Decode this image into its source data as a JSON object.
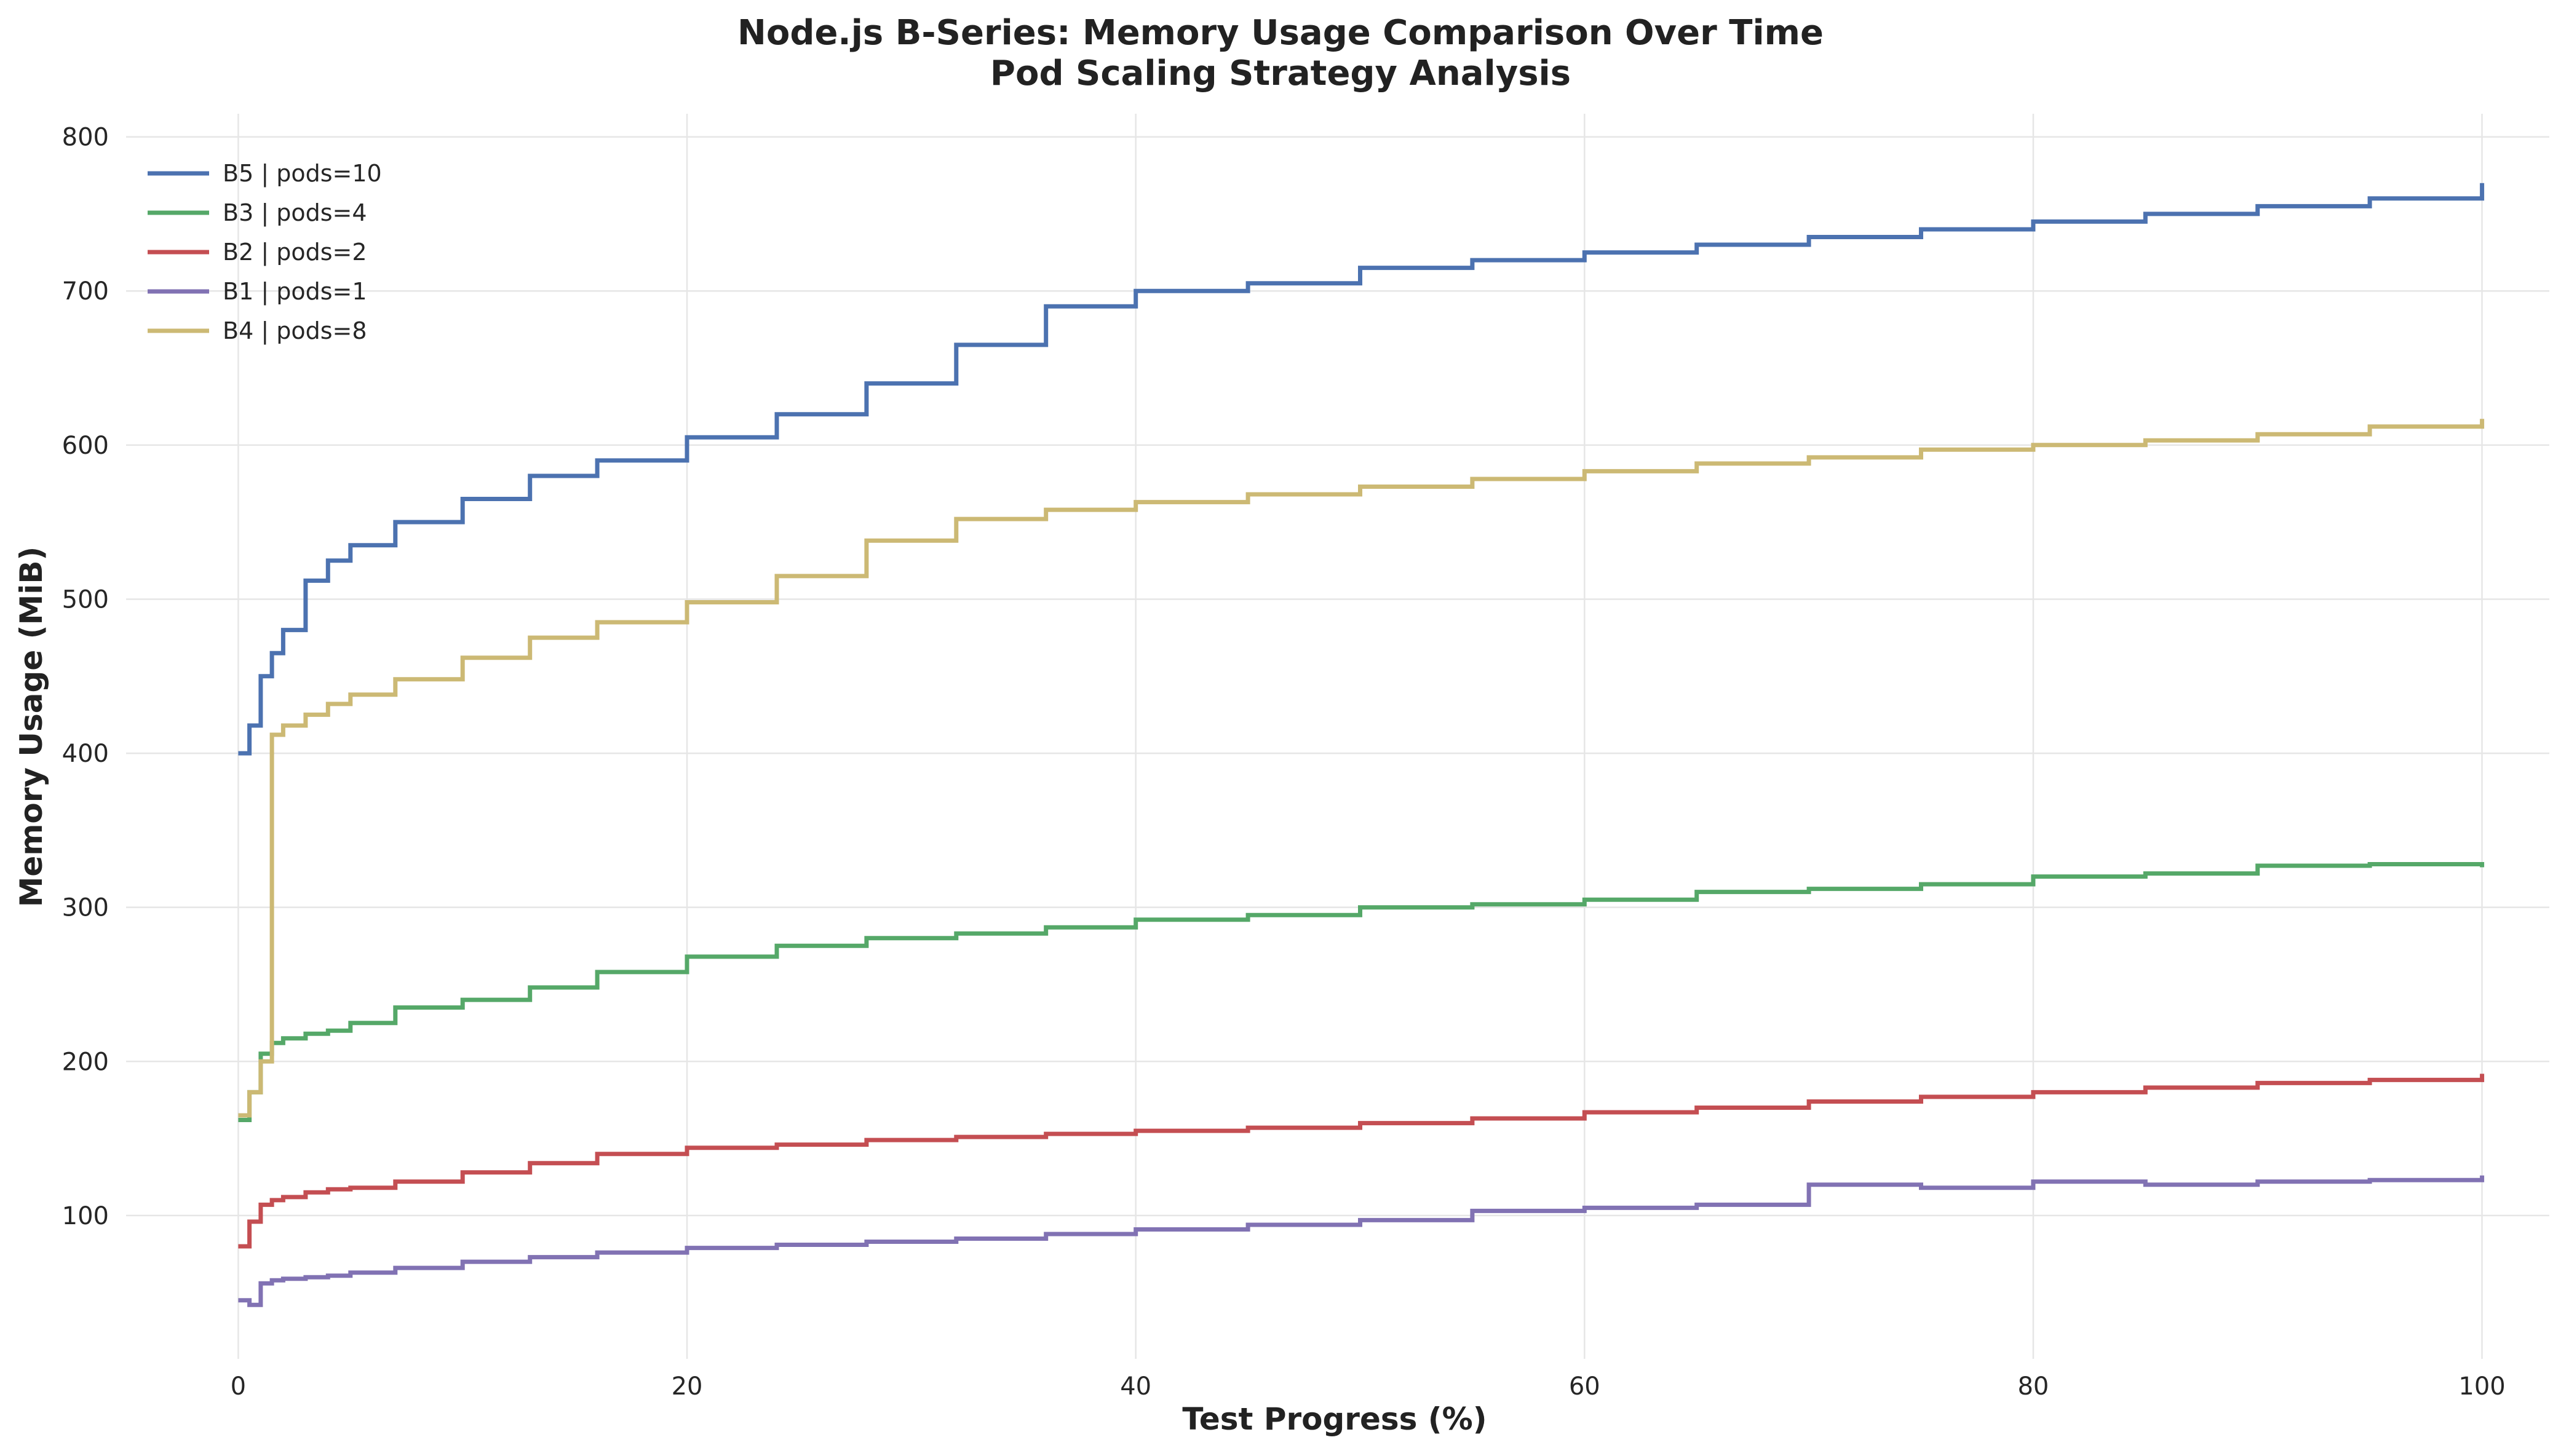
{
  "chart_data": {
    "type": "line",
    "step": true,
    "title": "Node.js B-Series: Memory Usage Comparison Over Time",
    "subtitle": "Pod Scaling Strategy Analysis",
    "xlabel": "Test Progress (%)",
    "ylabel": "Memory Usage (MiB)",
    "xlim": [
      -5,
      103
    ],
    "ylim": [
      7,
      815
    ],
    "xticks": [
      0,
      20,
      40,
      60,
      80,
      100
    ],
    "yticks": [
      100,
      200,
      300,
      400,
      500,
      600,
      700,
      800
    ],
    "xtick_labels": [
      "0",
      "20",
      "40",
      "60",
      "80",
      "100"
    ],
    "ytick_labels": [
      "100",
      "200",
      "300",
      "400",
      "500",
      "600",
      "700",
      "800"
    ],
    "grid": true,
    "legend_position": "top-left",
    "x": [
      0,
      0.5,
      1,
      1.5,
      2,
      3,
      4,
      5,
      7,
      10,
      13,
      16,
      20,
      24,
      28,
      32,
      36,
      40,
      45,
      50,
      55,
      60,
      65,
      70,
      75,
      80,
      85,
      90,
      95,
      100
    ],
    "series": [
      {
        "name": "B5 | pods=10",
        "color": "#4c72b0",
        "values": [
          400,
          418,
          450,
          465,
          480,
          512,
          525,
          535,
          550,
          565,
          580,
          590,
          605,
          620,
          640,
          665,
          690,
          700,
          705,
          715,
          720,
          725,
          730,
          735,
          740,
          745,
          750,
          755,
          760,
          770
        ]
      },
      {
        "name": "B3 | pods=4",
        "color": "#55a868",
        "values": [
          162,
          180,
          205,
          212,
          215,
          218,
          220,
          225,
          235,
          240,
          248,
          258,
          268,
          275,
          280,
          283,
          287,
          292,
          295,
          300,
          302,
          305,
          310,
          312,
          315,
          320,
          322,
          327,
          328,
          326
        ]
      },
      {
        "name": "B2 | pods=2",
        "color": "#c44e52",
        "values": [
          80,
          96,
          107,
          110,
          112,
          115,
          117,
          118,
          122,
          128,
          134,
          140,
          144,
          146,
          149,
          151,
          153,
          155,
          157,
          160,
          163,
          167,
          170,
          174,
          177,
          180,
          183,
          186,
          188,
          192
        ]
      },
      {
        "name": "B1 | pods=1",
        "color": "#8172b3",
        "values": [
          45,
          42,
          56,
          58,
          59,
          60,
          61,
          63,
          66,
          70,
          73,
          76,
          79,
          81,
          83,
          85,
          88,
          91,
          94,
          97,
          103,
          105,
          107,
          120,
          118,
          122,
          120,
          122,
          123,
          126
        ]
      },
      {
        "name": "B4 | pods=8",
        "color": "#ccb974",
        "values": [
          165,
          180,
          200,
          412,
          418,
          425,
          432,
          438,
          448,
          462,
          475,
          485,
          498,
          515,
          538,
          552,
          558,
          563,
          568,
          573,
          578,
          583,
          588,
          592,
          597,
          600,
          603,
          607,
          612,
          617
        ]
      }
    ]
  }
}
